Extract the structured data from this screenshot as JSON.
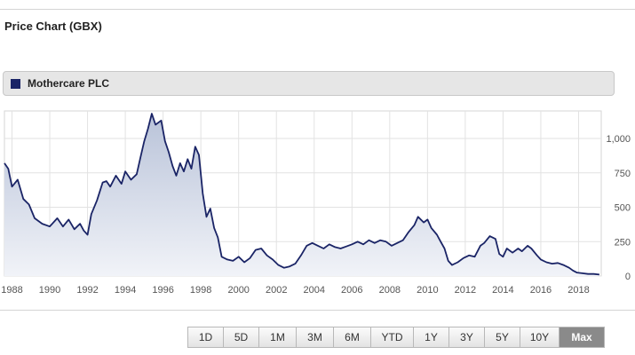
{
  "header": {
    "title": "Price Chart (GBX)"
  },
  "legend": {
    "label": "Mothercare PLC",
    "color": "#1a2466"
  },
  "range_selector": {
    "buttons": [
      "1D",
      "5D",
      "1M",
      "3M",
      "6M",
      "YTD",
      "1Y",
      "3Y",
      "5Y",
      "10Y",
      "Max"
    ],
    "active": "Max"
  },
  "chart_data": {
    "type": "area",
    "title": "",
    "xlabel": "",
    "ylabel": "",
    "x_ticks": [
      "1988",
      "1990",
      "1992",
      "1994",
      "1996",
      "1998",
      "2000",
      "2002",
      "2004",
      "2006",
      "2008",
      "2010",
      "2012",
      "2014",
      "2016",
      "2018"
    ],
    "y_ticks": [
      "0",
      "250",
      "500",
      "750",
      "1,000"
    ],
    "xlim": [
      1987.6,
      2019.2
    ],
    "ylim": [
      0,
      1200
    ],
    "grid": true,
    "line_color": "#1a2466",
    "series": [
      {
        "name": "Mothercare PLC",
        "points": [
          [
            1987.6,
            820
          ],
          [
            1987.8,
            780
          ],
          [
            1988.0,
            650
          ],
          [
            1988.3,
            700
          ],
          [
            1988.6,
            560
          ],
          [
            1988.9,
            520
          ],
          [
            1989.2,
            420
          ],
          [
            1989.6,
            380
          ],
          [
            1990.0,
            360
          ],
          [
            1990.4,
            420
          ],
          [
            1990.7,
            360
          ],
          [
            1991.0,
            410
          ],
          [
            1991.3,
            340
          ],
          [
            1991.6,
            380
          ],
          [
            1991.8,
            330
          ],
          [
            1992.0,
            300
          ],
          [
            1992.2,
            450
          ],
          [
            1992.5,
            550
          ],
          [
            1992.8,
            680
          ],
          [
            1993.0,
            690
          ],
          [
            1993.2,
            650
          ],
          [
            1993.5,
            730
          ],
          [
            1993.8,
            670
          ],
          [
            1994.0,
            760
          ],
          [
            1994.3,
            700
          ],
          [
            1994.6,
            740
          ],
          [
            1994.8,
            860
          ],
          [
            1995.0,
            980
          ],
          [
            1995.2,
            1070
          ],
          [
            1995.4,
            1180
          ],
          [
            1995.6,
            1100
          ],
          [
            1995.9,
            1130
          ],
          [
            1996.1,
            980
          ],
          [
            1996.3,
            900
          ],
          [
            1996.5,
            800
          ],
          [
            1996.7,
            730
          ],
          [
            1996.9,
            820
          ],
          [
            1997.1,
            760
          ],
          [
            1997.3,
            850
          ],
          [
            1997.5,
            780
          ],
          [
            1997.7,
            940
          ],
          [
            1997.9,
            880
          ],
          [
            1998.1,
            600
          ],
          [
            1998.3,
            430
          ],
          [
            1998.5,
            490
          ],
          [
            1998.7,
            350
          ],
          [
            1998.9,
            280
          ],
          [
            1999.1,
            140
          ],
          [
            1999.4,
            120
          ],
          [
            1999.7,
            110
          ],
          [
            2000.0,
            140
          ],
          [
            2000.3,
            100
          ],
          [
            2000.6,
            130
          ],
          [
            2000.9,
            190
          ],
          [
            2001.2,
            200
          ],
          [
            2001.5,
            150
          ],
          [
            2001.8,
            120
          ],
          [
            2002.1,
            80
          ],
          [
            2002.4,
            60
          ],
          [
            2002.7,
            70
          ],
          [
            2003.0,
            90
          ],
          [
            2003.3,
            150
          ],
          [
            2003.6,
            220
          ],
          [
            2003.9,
            240
          ],
          [
            2004.2,
            220
          ],
          [
            2004.5,
            200
          ],
          [
            2004.8,
            230
          ],
          [
            2005.1,
            210
          ],
          [
            2005.4,
            200
          ],
          [
            2005.7,
            215
          ],
          [
            2006.0,
            230
          ],
          [
            2006.3,
            250
          ],
          [
            2006.6,
            230
          ],
          [
            2006.9,
            260
          ],
          [
            2007.2,
            240
          ],
          [
            2007.5,
            260
          ],
          [
            2007.8,
            250
          ],
          [
            2008.1,
            220
          ],
          [
            2008.4,
            240
          ],
          [
            2008.7,
            260
          ],
          [
            2009.0,
            320
          ],
          [
            2009.3,
            370
          ],
          [
            2009.5,
            430
          ],
          [
            2009.8,
            390
          ],
          [
            2010.0,
            410
          ],
          [
            2010.2,
            350
          ],
          [
            2010.5,
            300
          ],
          [
            2010.7,
            250
          ],
          [
            2010.9,
            200
          ],
          [
            2011.1,
            110
          ],
          [
            2011.3,
            80
          ],
          [
            2011.6,
            100
          ],
          [
            2011.9,
            130
          ],
          [
            2012.2,
            150
          ],
          [
            2012.5,
            140
          ],
          [
            2012.8,
            220
          ],
          [
            2013.0,
            240
          ],
          [
            2013.3,
            290
          ],
          [
            2013.6,
            270
          ],
          [
            2013.8,
            160
          ],
          [
            2014.0,
            140
          ],
          [
            2014.2,
            200
          ],
          [
            2014.5,
            170
          ],
          [
            2014.8,
            200
          ],
          [
            2015.0,
            180
          ],
          [
            2015.3,
            220
          ],
          [
            2015.5,
            200
          ],
          [
            2015.8,
            150
          ],
          [
            2016.0,
            120
          ],
          [
            2016.3,
            100
          ],
          [
            2016.6,
            90
          ],
          [
            2016.9,
            95
          ],
          [
            2017.2,
            80
          ],
          [
            2017.5,
            60
          ],
          [
            2017.7,
            40
          ],
          [
            2017.9,
            25
          ],
          [
            2018.2,
            20
          ],
          [
            2018.5,
            15
          ],
          [
            2018.8,
            15
          ],
          [
            2019.1,
            10
          ]
        ]
      }
    ]
  }
}
